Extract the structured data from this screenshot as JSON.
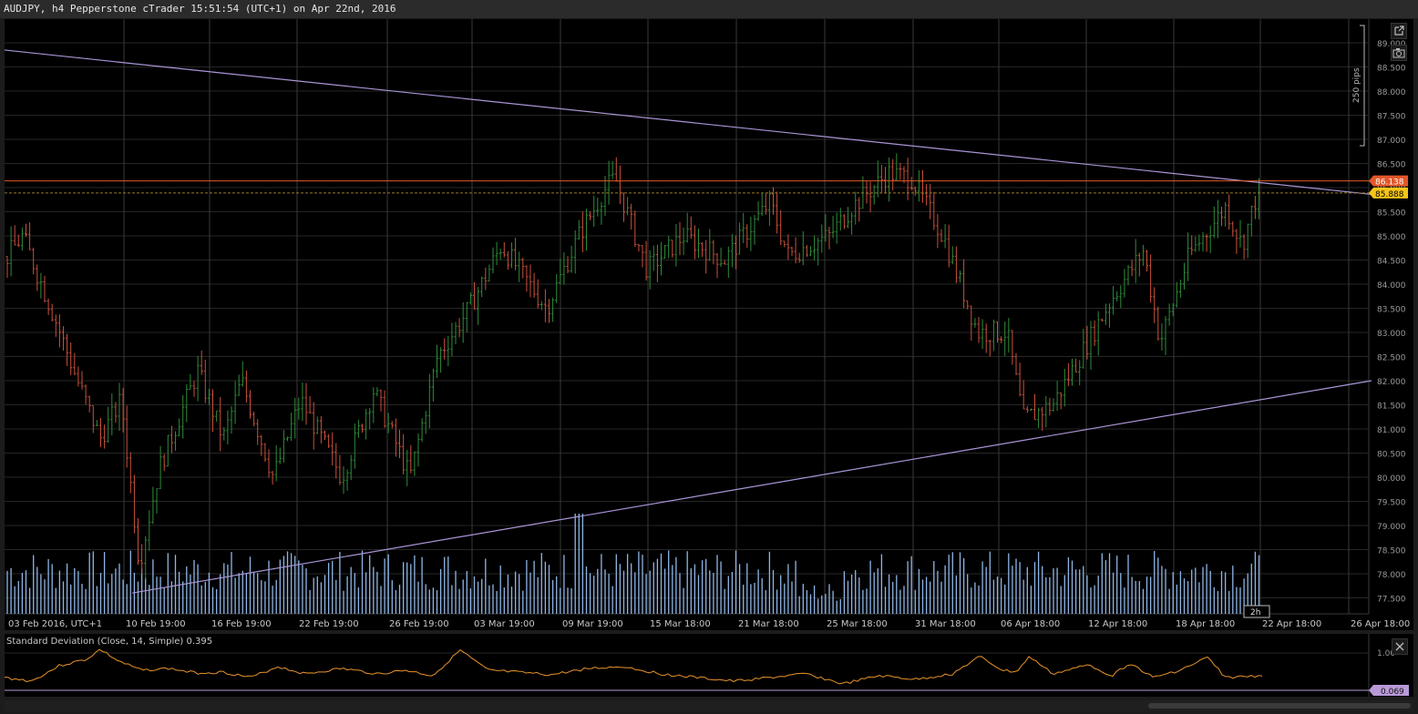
{
  "window": {
    "title": "AUDJPY, h4 Pepperstone cTrader 15:51:54 (UTC+1) on Apr 22nd, 2016"
  },
  "toolbar": {
    "popout_icon": "external-link-icon",
    "screenshot_icon": "camera-icon",
    "close_indicator_icon": "close-icon"
  },
  "price_axis": {
    "ticks": [
      "89.000",
      "88.500",
      "88.000",
      "87.500",
      "87.000",
      "86.500",
      "86.000",
      "85.500",
      "85.000",
      "84.500",
      "84.000",
      "83.500",
      "83.000",
      "82.500",
      "82.000",
      "81.500",
      "81.000",
      "80.500",
      "80.000",
      "79.500",
      "79.000",
      "78.500",
      "78.000",
      "77.500"
    ],
    "range": [
      77.25,
      89.3
    ],
    "ask_label": "86.138",
    "bid_label": "85.888",
    "ask_value": 86.138,
    "bid_value": 85.888,
    "pips_label": "250 pips",
    "timer_label": "2h"
  },
  "time_axis": {
    "labels": [
      "03 Feb 2016, UTC+1",
      "10 Feb 19:00",
      "16 Feb 19:00",
      "22 Feb 19:00",
      "26 Feb 19:00",
      "03 Mar 19:00",
      "09 Mar 19:00",
      "15 Mar 18:00",
      "21 Mar 18:00",
      "25 Mar 18:00",
      "31 Mar 18:00",
      "06 Apr 18:00",
      "12 Apr 18:00",
      "18 Apr 18:00",
      "22 Apr 18:00",
      "26 Apr 18:00"
    ]
  },
  "trendlines": [
    {
      "name": "upper-trendline",
      "from": [
        0,
        88.85
      ],
      "to": [
        1500,
        85.86
      ]
    },
    {
      "name": "lower-trendline",
      "from": [
        140,
        77.6
      ],
      "to": [
        1500,
        82.0
      ]
    }
  ],
  "indicator": {
    "label": "Standard Deviation (Close, 14, Simple) 0.395",
    "axis_label": "1.00",
    "value_label": "0.069"
  },
  "colors": {
    "up_candle": "#2e8b3a",
    "down_candle": "#c8503c",
    "volume": "#8fb5e6",
    "trendline": "#a995d6",
    "ask_line": "#e2572a",
    "bid_label": "#f5c518",
    "indicator_line": "#e8942a",
    "indicator_badge": "#b99ad9"
  },
  "chart_data": {
    "type": "ohlc",
    "symbol": "AUDJPY",
    "timeframe": "h4",
    "anchors": [
      [
        0,
        84.5
      ],
      [
        20,
        85.0
      ],
      [
        55,
        83.3
      ],
      [
        80,
        82.0
      ],
      [
        105,
        80.8
      ],
      [
        128,
        81.6
      ],
      [
        148,
        78.2
      ],
      [
        170,
        80.2
      ],
      [
        212,
        82.2
      ],
      [
        240,
        80.8
      ],
      [
        260,
        82.0
      ],
      [
        295,
        80.0
      ],
      [
        325,
        81.6
      ],
      [
        370,
        80.0
      ],
      [
        405,
        81.8
      ],
      [
        445,
        80.0
      ],
      [
        475,
        82.5
      ],
      [
        510,
        83.5
      ],
      [
        545,
        84.8
      ],
      [
        595,
        83.5
      ],
      [
        630,
        85.0
      ],
      [
        660,
        86.0
      ],
      [
        670,
        86.2
      ],
      [
        705,
        84.3
      ],
      [
        745,
        85.0
      ],
      [
        790,
        84.5
      ],
      [
        840,
        85.7
      ],
      [
        860,
        84.6
      ],
      [
        905,
        85.0
      ],
      [
        930,
        85.6
      ],
      [
        970,
        86.3
      ],
      [
        995,
        86.2
      ],
      [
        1030,
        85.0
      ],
      [
        1068,
        83.0
      ],
      [
        1100,
        83.0
      ],
      [
        1118,
        81.2
      ],
      [
        1150,
        81.5
      ],
      [
        1180,
        82.5
      ],
      [
        1215,
        83.7
      ],
      [
        1250,
        84.7
      ],
      [
        1268,
        82.8
      ],
      [
        1300,
        84.6
      ],
      [
        1340,
        85.6
      ],
      [
        1358,
        84.8
      ],
      [
        1375,
        85.9
      ],
      [
        1382,
        86.1
      ]
    ],
    "volume_range": [
      0,
      1
    ]
  }
}
